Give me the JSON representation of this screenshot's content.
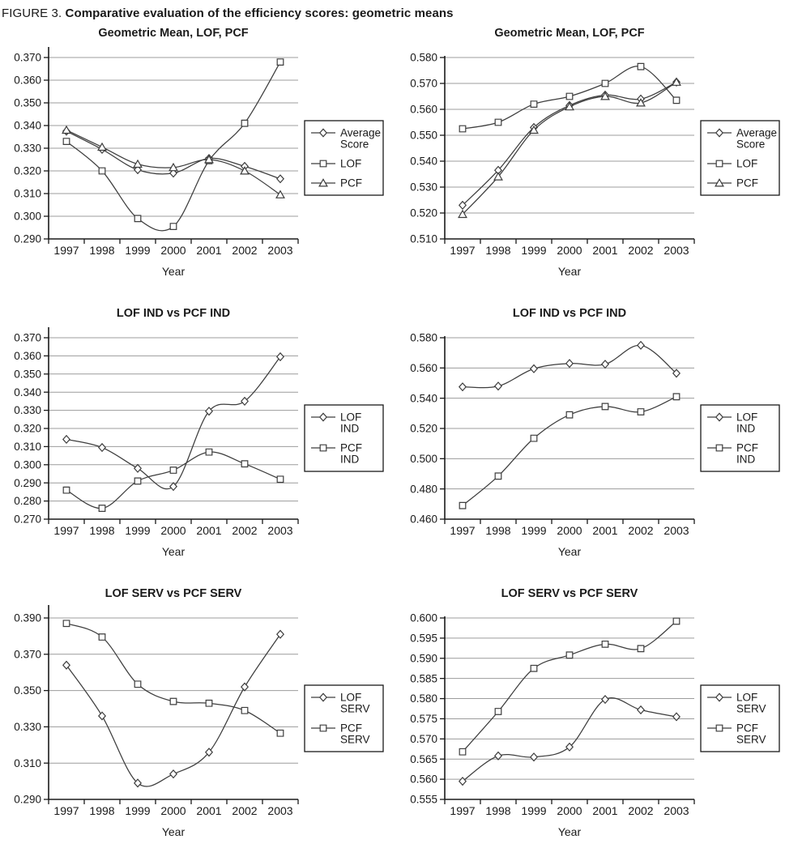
{
  "figure_title": {
    "prefix": "FIGURE 3.",
    "title": "Comparative evaluation of the efficiency scores: geometric means"
  },
  "colors": {
    "series_line": "#3d3d3d",
    "marker_fill": "#ffffff",
    "grid": "#9c9c9c",
    "axis": "#1a1a1a",
    "text": "#1a1a1a",
    "background": "#ffffff"
  },
  "chart_data": [
    {
      "type": "line",
      "title": "Geometric Mean, LOF, PCF",
      "xlabel": "Year",
      "categories": [
        "1997",
        "1998",
        "1999",
        "2000",
        "2001",
        "2002",
        "2003"
      ],
      "ylim": [
        0.29,
        0.37
      ],
      "ytick_step": 0.01,
      "ydecimals": 3,
      "grid": true,
      "legend_position": "right",
      "series": [
        {
          "name": "Average Score",
          "marker": "diamond",
          "values": [
            0.3375,
            0.3295,
            0.3205,
            0.319,
            0.3255,
            0.322,
            0.3165
          ]
        },
        {
          "name": "LOF",
          "marker": "square",
          "values": [
            0.333,
            0.32,
            0.299,
            0.2955,
            0.3245,
            0.341,
            0.368
          ]
        },
        {
          "name": "PCF",
          "marker": "triangle",
          "values": [
            0.338,
            0.3305,
            0.323,
            0.3215,
            0.325,
            0.32,
            0.3095
          ]
        }
      ]
    },
    {
      "type": "line",
      "title": "Geometric Mean, LOF, PCF",
      "xlabel": "Year",
      "categories": [
        "1997",
        "1998",
        "1999",
        "2000",
        "2001",
        "2002",
        "2003"
      ],
      "ylim": [
        0.51,
        0.58
      ],
      "ytick_step": 0.01,
      "ydecimals": 3,
      "grid": true,
      "legend_position": "right",
      "series": [
        {
          "name": "Average Score",
          "marker": "diamond",
          "values": [
            0.523,
            0.5365,
            0.553,
            0.5615,
            0.5655,
            0.564,
            0.5705
          ]
        },
        {
          "name": "LOF",
          "marker": "square",
          "values": [
            0.5525,
            0.555,
            0.562,
            0.565,
            0.57,
            0.5765,
            0.5635
          ]
        },
        {
          "name": "PCF",
          "marker": "triangle",
          "values": [
            0.5195,
            0.534,
            0.552,
            0.561,
            0.565,
            0.5625,
            0.5705
          ]
        }
      ]
    },
    {
      "type": "line",
      "title": "LOF IND vs PCF IND",
      "xlabel": "Year",
      "categories": [
        "1997",
        "1998",
        "1999",
        "2000",
        "2001",
        "2002",
        "2003"
      ],
      "ylim": [
        0.27,
        0.37
      ],
      "ytick_step": 0.01,
      "ydecimals": 3,
      "grid": true,
      "legend_position": "right",
      "series": [
        {
          "name": "LOF IND",
          "marker": "diamond",
          "values": [
            0.314,
            0.3095,
            0.298,
            0.288,
            0.3295,
            0.335,
            0.3595
          ]
        },
        {
          "name": "PCF IND",
          "marker": "square",
          "values": [
            0.286,
            0.276,
            0.291,
            0.297,
            0.307,
            0.3005,
            0.292
          ]
        }
      ]
    },
    {
      "type": "line",
      "title": "LOF IND vs PCF IND",
      "xlabel": "Year",
      "categories": [
        "1997",
        "1998",
        "1999",
        "2000",
        "2001",
        "2002",
        "2003"
      ],
      "ylim": [
        0.46,
        0.58
      ],
      "ytick_step": 0.02,
      "ydecimals": 3,
      "grid": true,
      "legend_position": "right",
      "series": [
        {
          "name": "LOF IND",
          "marker": "diamond",
          "values": [
            0.5475,
            0.548,
            0.5595,
            0.563,
            0.5625,
            0.575,
            0.5565
          ]
        },
        {
          "name": "PCF IND",
          "marker": "square",
          "values": [
            0.469,
            0.4885,
            0.5135,
            0.529,
            0.5345,
            0.531,
            0.541
          ]
        }
      ]
    },
    {
      "type": "line",
      "title": "LOF SERV vs PCF SERV",
      "xlabel": "Year",
      "categories": [
        "1997",
        "1998",
        "1999",
        "2000",
        "2001",
        "2002",
        "2003"
      ],
      "ylim": [
        0.29,
        0.39
      ],
      "ytick_step": 0.02,
      "ydecimals": 3,
      "grid": true,
      "legend_position": "right",
      "series": [
        {
          "name": "LOF SERV",
          "marker": "diamond",
          "values": [
            0.364,
            0.336,
            0.299,
            0.304,
            0.316,
            0.352,
            0.381
          ]
        },
        {
          "name": "PCF SERV",
          "marker": "square",
          "values": [
            0.387,
            0.3795,
            0.3535,
            0.344,
            0.343,
            0.339,
            0.3265
          ]
        }
      ]
    },
    {
      "type": "line",
      "title": "LOF SERV vs PCF SERV",
      "xlabel": "Year",
      "categories": [
        "1997",
        "1998",
        "1999",
        "2000",
        "2001",
        "2002",
        "2003"
      ],
      "ylim": [
        0.555,
        0.6
      ],
      "ytick_step": 0.005,
      "ydecimals": 3,
      "grid": true,
      "legend_position": "right",
      "series": [
        {
          "name": "LOF SERV",
          "marker": "diamond",
          "values": [
            0.5595,
            0.5658,
            0.5655,
            0.568,
            0.5798,
            0.5772,
            0.5755
          ]
        },
        {
          "name": "PCF SERV",
          "marker": "square",
          "values": [
            0.5668,
            0.5768,
            0.5875,
            0.5908,
            0.5935,
            0.5924,
            0.5992
          ]
        }
      ]
    }
  ]
}
